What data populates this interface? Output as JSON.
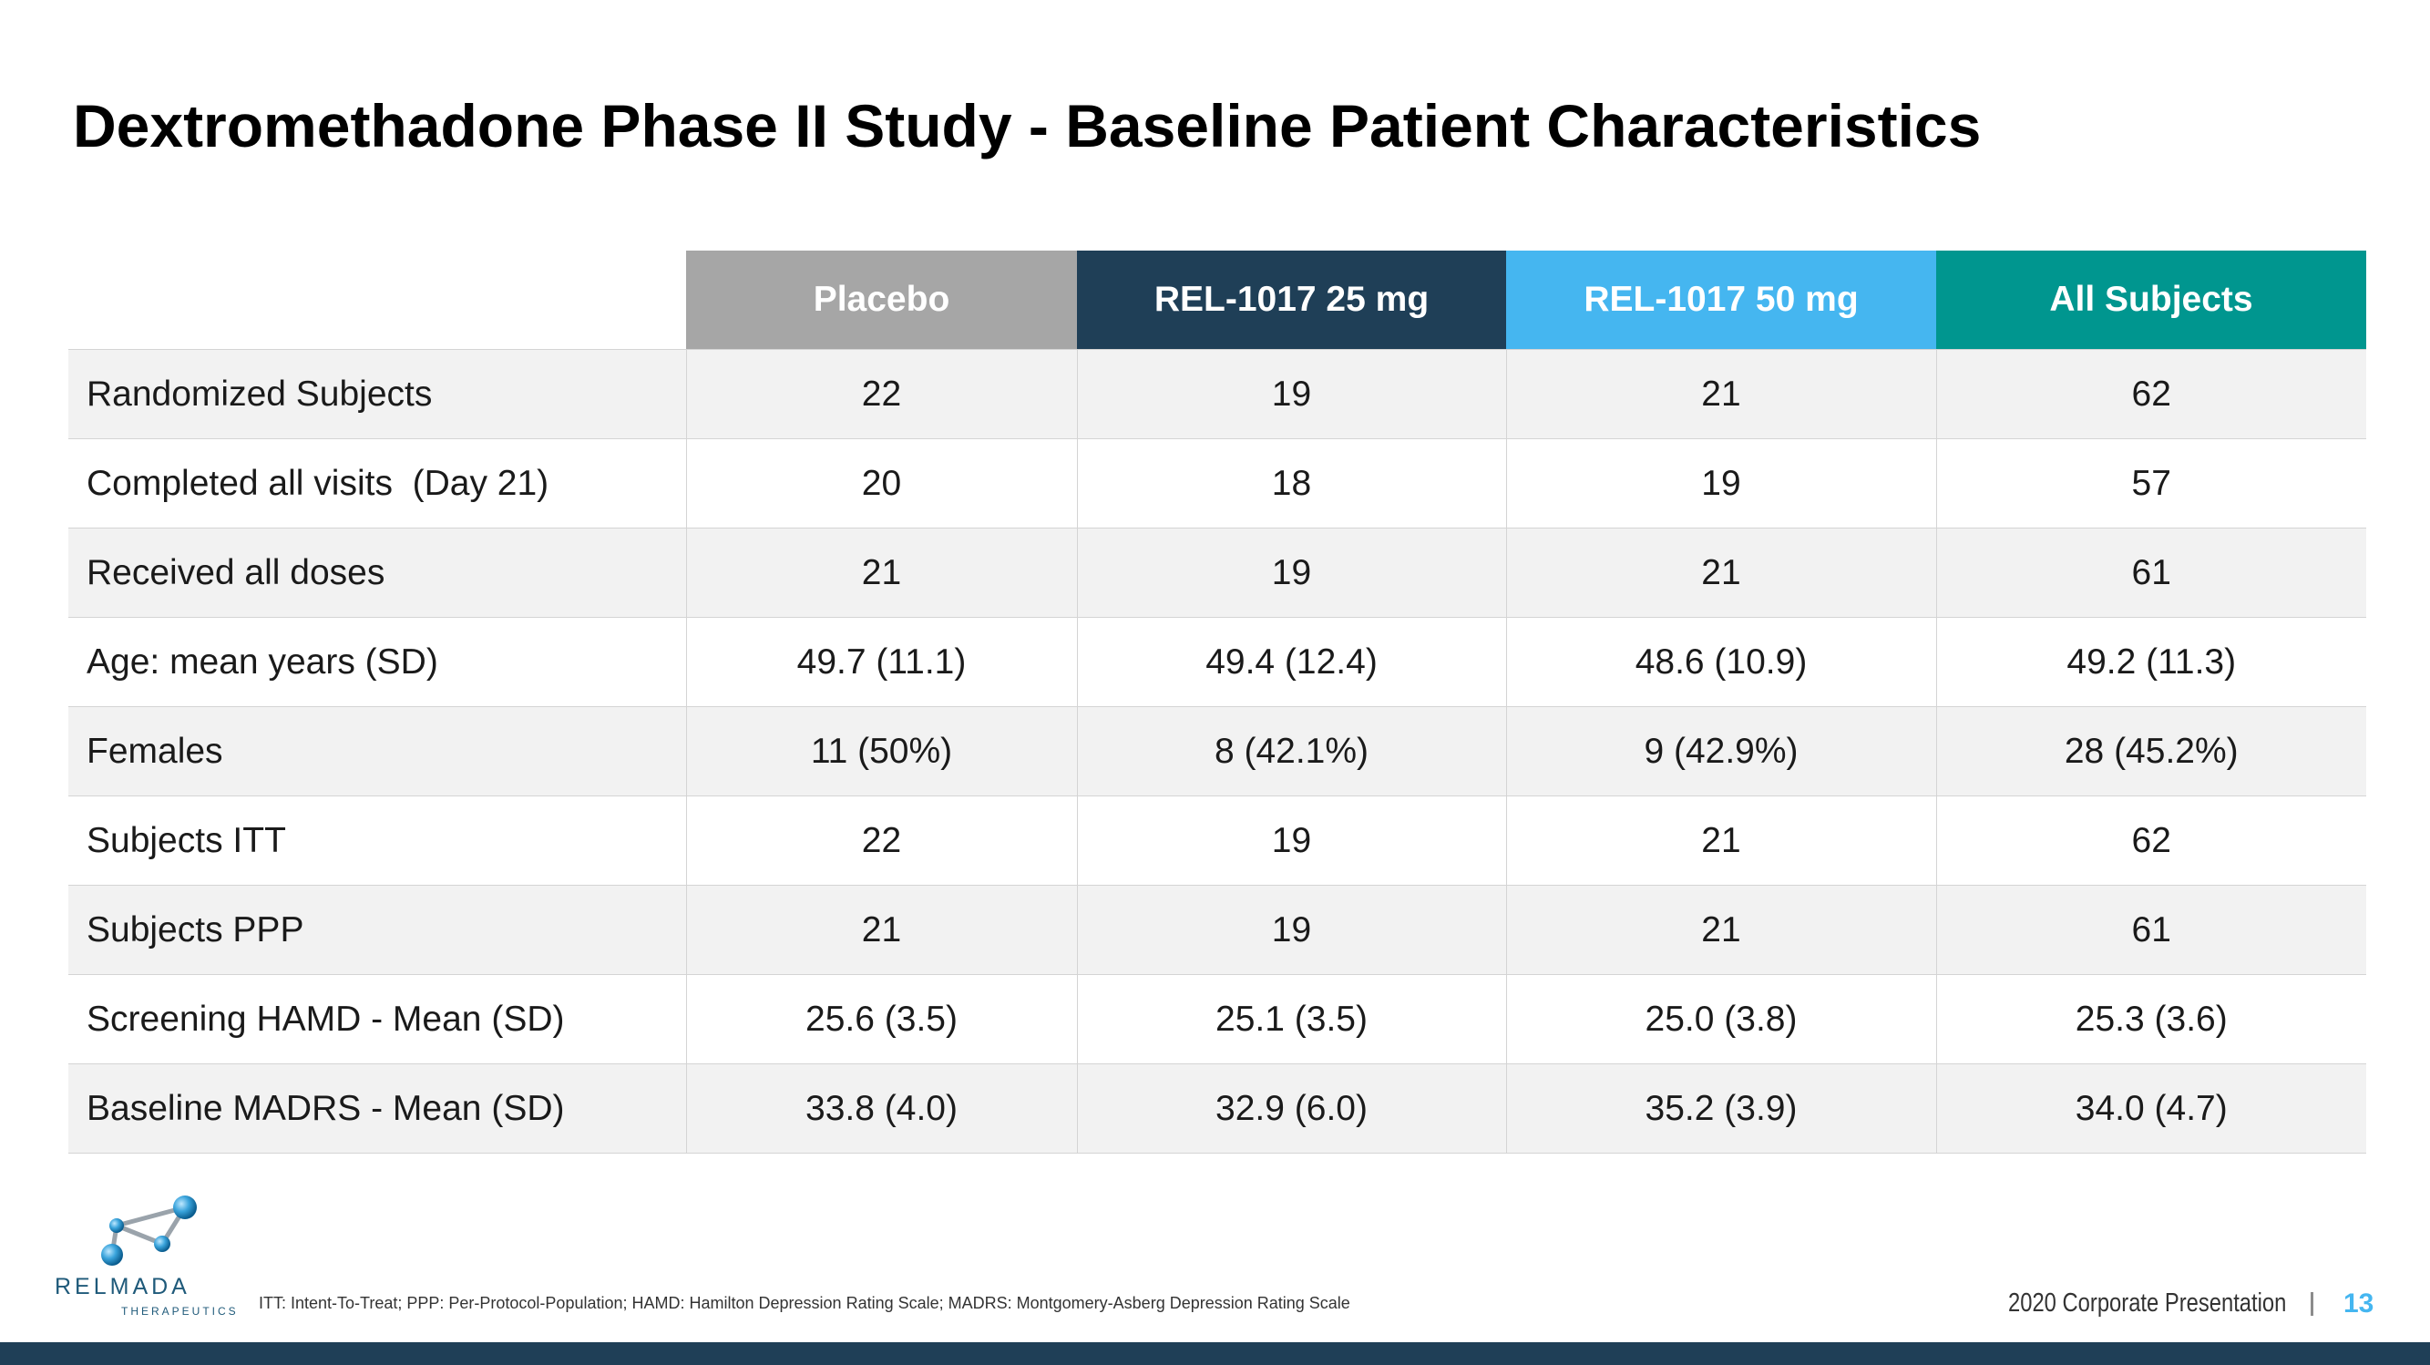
{
  "slide": {
    "title": "Dextromethadone Phase II Study - Baseline Patient Characteristics",
    "footnote": "ITT: Intent-To-Treat; PPP: Per-Protocol-Population; HAMD: Hamilton Depression Rating Scale; MADRS: Montgomery-Asberg Depression Rating Scale",
    "corporate_label": "2020 Corporate Presentation",
    "page_number": "13"
  },
  "logo": {
    "name": "RELMADA",
    "subtitle": "THERAPEUTICS"
  },
  "table": {
    "headers": [
      "",
      "Placebo",
      "REL-1017 25 mg",
      "REL-1017 50 mg",
      "All Subjects"
    ],
    "header_colors": [
      "#ffffff",
      "#a6a6a6",
      "#1f3f57",
      "#45b6f0",
      "#00968f"
    ],
    "rows": [
      {
        "label": "Randomized Subjects",
        "values": [
          "22",
          "19",
          "21",
          "62"
        ]
      },
      {
        "label": "Completed all visits  (Day 21)",
        "values": [
          "20",
          "18",
          "19",
          "57"
        ]
      },
      {
        "label": "Received all doses",
        "values": [
          "21",
          "19",
          "21",
          "61"
        ]
      },
      {
        "label": "Age: mean years (SD)",
        "values": [
          "49.7 (11.1)",
          "49.4 (12.4)",
          "48.6 (10.9)",
          "49.2 (11.3)"
        ]
      },
      {
        "label": "Females",
        "values": [
          "11 (50%)",
          "8 (42.1%)",
          "9 (42.9%)",
          "28 (45.2%)"
        ]
      },
      {
        "label": "Subjects ITT",
        "values": [
          "22",
          "19",
          "21",
          "62"
        ]
      },
      {
        "label": "Subjects PPP",
        "values": [
          "21",
          "19",
          "21",
          "61"
        ]
      },
      {
        "label": "Screening HAMD - Mean (SD)",
        "values": [
          "25.6 (3.5)",
          "25.1 (3.5)",
          "25.0 (3.8)",
          "25.3 (3.6)"
        ]
      },
      {
        "label": "Baseline MADRS - Mean (SD)",
        "values": [
          "33.8 (4.0)",
          "32.9 (6.0)",
          "35.2 (3.9)",
          "34.0 (4.7)"
        ]
      }
    ]
  }
}
